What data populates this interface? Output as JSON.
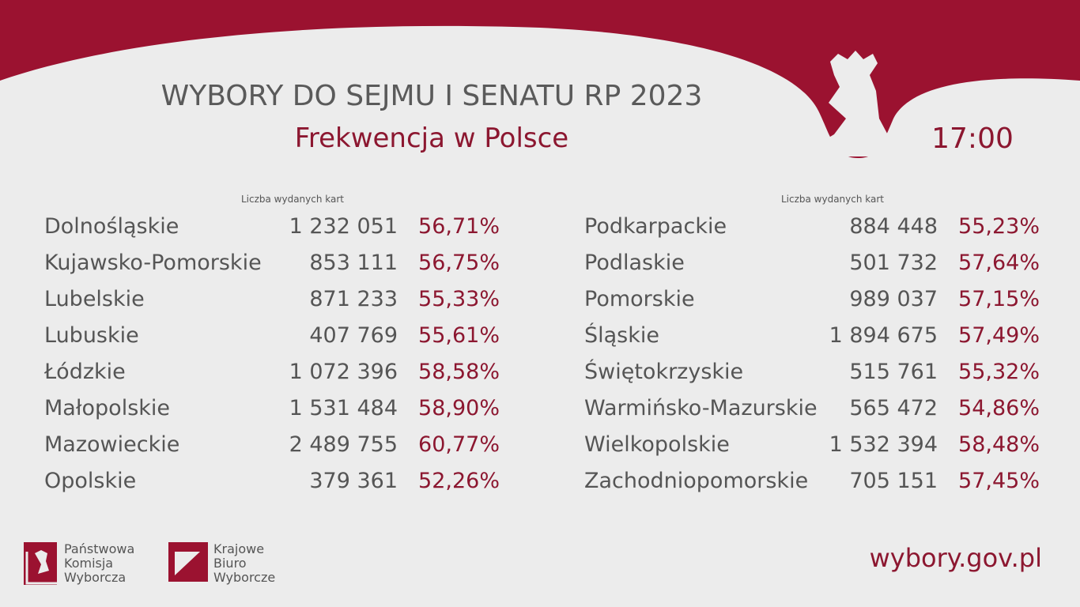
{
  "header": {
    "title": "WYBORY DO SEJMU I SENATU RP 2023",
    "subtitle": "Frekwencja w Polsce",
    "time": "17:00"
  },
  "tables": [
    {
      "column_label": "Liczba wydanych kart",
      "rows": [
        [
          "Dolnośląskie",
          "1 232 051",
          "56,71%"
        ],
        [
          "Kujawsko-Pomorskie",
          "853 111",
          "56,75%"
        ],
        [
          "Lubelskie",
          "871 233",
          "55,33%"
        ],
        [
          "Lubuskie",
          "407 769",
          "55,61%"
        ],
        [
          "Łódzkie",
          "1 072 396",
          "58,58%"
        ],
        [
          "Małopolskie",
          "1 531 484",
          "58,90%"
        ],
        [
          "Mazowieckie",
          "2 489 755",
          "60,77%"
        ],
        [
          "Opolskie",
          "379 361",
          "52,26%"
        ]
      ]
    },
    {
      "column_label": "Liczba wydanych kart",
      "rows": [
        [
          "Podkarpackie",
          "884 448",
          "55,23%"
        ],
        [
          "Podlaskie",
          "501 732",
          "57,64%"
        ],
        [
          "Pomorskie",
          "989 037",
          "57,15%"
        ],
        [
          "Śląskie",
          "1 894 675",
          "57,49%"
        ],
        [
          "Świętokrzyskie",
          "515 761",
          "55,32%"
        ],
        [
          "Warmińsko-Mazurskie",
          "565 472",
          "54,86%"
        ],
        [
          "Wielkopolskie",
          "1 532 394",
          "58,48%"
        ],
        [
          "Zachodniopomorskie",
          "705 151",
          "57,45%"
        ]
      ]
    }
  ],
  "footer": {
    "logos": [
      [
        "Państwowa",
        "Komisja",
        "Wyborcza"
      ],
      [
        "Krajowe",
        "Biuro",
        "Wyborcze"
      ]
    ],
    "url": "wybory.gov.pl"
  }
}
